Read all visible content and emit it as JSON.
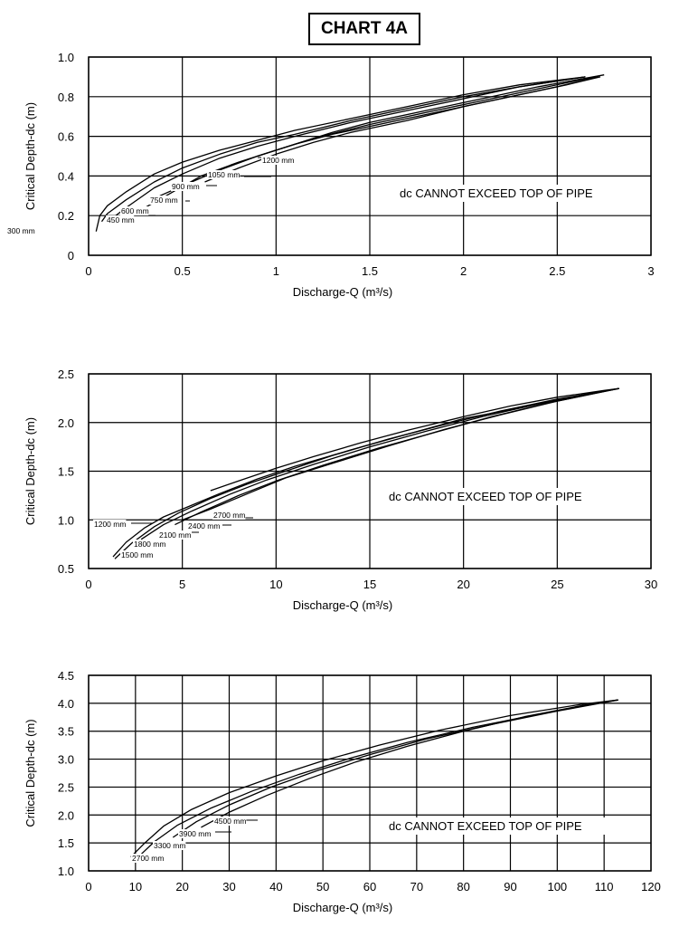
{
  "page_title": "CHART 4A",
  "chart_data": [
    {
      "type": "line",
      "xlabel": "Discharge-Q (m³/s)",
      "ylabel": "Critical Depth-dc (m)",
      "xlim": [
        0,
        3
      ],
      "ylim": [
        0,
        1.0
      ],
      "xticks": [
        0,
        0.5,
        1,
        1.5,
        2,
        2.5,
        3
      ],
      "xtick_labels": [
        "0",
        "0.5",
        "1",
        "1.5",
        "2",
        "2.5",
        "3"
      ],
      "yticks": [
        0,
        0.2,
        0.4,
        0.6,
        0.8,
        1.0
      ],
      "ytick_labels": [
        "0",
        "0.2",
        "0.4",
        "0.6",
        "0.8",
        "1.0"
      ],
      "grid": true,
      "annotation": "dc CANNOT EXCEED TOP OF PIPE",
      "series": [
        {
          "name": "300 mm",
          "x": [
            0.04,
            0.06,
            0.1,
            0.2,
            0.35,
            0.5,
            0.7,
            0.9,
            1.1,
            1.4,
            1.7,
            2.0,
            2.3,
            2.65
          ],
          "y": [
            0.12,
            0.2,
            0.25,
            0.32,
            0.41,
            0.47,
            0.53,
            0.58,
            0.63,
            0.69,
            0.75,
            0.81,
            0.86,
            0.9
          ]
        },
        {
          "name": "450 mm",
          "x": [
            0.07,
            0.1,
            0.2,
            0.35,
            0.5,
            0.7,
            0.9,
            1.1,
            1.4,
            1.7,
            2.0,
            2.3,
            2.65
          ],
          "y": [
            0.17,
            0.21,
            0.28,
            0.37,
            0.44,
            0.51,
            0.57,
            0.61,
            0.68,
            0.74,
            0.8,
            0.85,
            0.9
          ]
        },
        {
          "name": "600 mm",
          "x": [
            0.13,
            0.2,
            0.35,
            0.5,
            0.7,
            0.9,
            1.1,
            1.4,
            1.7,
            2.0,
            2.3,
            2.65
          ],
          "y": [
            0.19,
            0.24,
            0.34,
            0.41,
            0.49,
            0.55,
            0.6,
            0.67,
            0.73,
            0.79,
            0.85,
            0.9
          ]
        },
        {
          "name": "750 mm",
          "x": [
            0.3,
            0.45,
            0.6,
            0.8,
            1.0,
            1.2,
            1.5,
            1.8,
            2.1,
            2.4,
            2.7
          ],
          "y": [
            0.24,
            0.32,
            0.4,
            0.47,
            0.53,
            0.59,
            0.66,
            0.72,
            0.78,
            0.84,
            0.9
          ]
        },
        {
          "name": "900 mm",
          "x": [
            0.38,
            0.5,
            0.7,
            0.9,
            1.1,
            1.3,
            1.6,
            1.9,
            2.2,
            2.5,
            2.72
          ],
          "y": [
            0.3,
            0.35,
            0.43,
            0.5,
            0.56,
            0.61,
            0.67,
            0.73,
            0.79,
            0.85,
            0.9
          ]
        },
        {
          "name": "1050 mm",
          "x": [
            0.62,
            0.8,
            1.0,
            1.2,
            1.4,
            1.7,
            2.0,
            2.3,
            2.55,
            2.73
          ],
          "y": [
            0.37,
            0.44,
            0.51,
            0.57,
            0.62,
            0.68,
            0.75,
            0.81,
            0.86,
            0.9
          ]
        },
        {
          "name": "1200 mm",
          "x": [
            0.9,
            1.1,
            1.3,
            1.5,
            1.8,
            2.1,
            2.4,
            2.75
          ],
          "y": [
            0.5,
            0.56,
            0.62,
            0.67,
            0.73,
            0.79,
            0.85,
            0.91
          ]
        }
      ]
    },
    {
      "type": "line",
      "xlabel": "Discharge-Q (m³/s)",
      "ylabel": "Critical Depth-dc (m)",
      "xlim": [
        0,
        30
      ],
      "ylim": [
        0.5,
        2.5
      ],
      "xticks": [
        0,
        5,
        10,
        15,
        20,
        25,
        30
      ],
      "xtick_labels": [
        "0",
        "5",
        "10",
        "15",
        "20",
        "25",
        "30"
      ],
      "yticks": [
        0.5,
        1.0,
        1.5,
        2.0,
        2.5
      ],
      "ytick_labels": [
        "0.5",
        "1.0",
        "1.5",
        "2.0",
        "2.5"
      ],
      "grid": true,
      "annotation": "dc CANNOT EXCEED TOP OF PIPE",
      "series": [
        {
          "name": "1200 mm",
          "x": [
            1.3,
            2.0,
            3.0,
            4.0,
            5.5,
            7.0,
            9.0,
            11.0,
            14.0,
            17.0,
            20.0,
            23.0,
            26.0,
            28.3
          ],
          "y": [
            0.62,
            0.77,
            0.92,
            1.03,
            1.15,
            1.27,
            1.42,
            1.55,
            1.72,
            1.88,
            2.04,
            2.15,
            2.27,
            2.35
          ]
        },
        {
          "name": "1500 mm",
          "x": [
            1.4,
            2.3,
            3.5,
            4.8,
            6.5,
            8.5,
            10.5,
            13.0,
            16.0,
            19.0,
            22.0,
            25.0,
            28.3
          ],
          "y": [
            0.6,
            0.76,
            0.93,
            1.07,
            1.22,
            1.37,
            1.5,
            1.66,
            1.83,
            1.98,
            2.12,
            2.24,
            2.35
          ]
        },
        {
          "name": "1800 mm",
          "x": [
            2.8,
            4.0,
            5.5,
            7.5,
            9.5,
            12.0,
            15.0,
            18.0,
            21.0,
            24.0,
            26.5,
            28.3
          ],
          "y": [
            0.8,
            0.95,
            1.09,
            1.26,
            1.41,
            1.57,
            1.75,
            1.91,
            2.06,
            2.19,
            2.29,
            2.35
          ]
        },
        {
          "name": "2100 mm",
          "x": [
            4.6,
            6.0,
            8.0,
            10.0,
            12.5,
            15.5,
            18.5,
            21.5,
            24.5,
            27.0,
            28.3
          ],
          "y": [
            0.95,
            1.08,
            1.25,
            1.4,
            1.56,
            1.74,
            1.9,
            2.06,
            2.2,
            2.3,
            2.35
          ]
        },
        {
          "name": "2400 mm",
          "x": [
            5.0,
            6.5,
            8.5,
            10.5,
            13.0,
            16.0,
            19.0,
            22.0,
            25.0,
            27.3,
            28.3
          ],
          "y": [
            1.0,
            1.11,
            1.27,
            1.43,
            1.58,
            1.76,
            1.93,
            2.08,
            2.22,
            2.31,
            2.35
          ]
        },
        {
          "name": "2700 mm",
          "x": [
            6.5,
            8.0,
            10.0,
            12.0,
            14.5,
            17.0,
            20.0,
            22.5,
            25.0,
            27.5,
            28.3
          ],
          "y": [
            1.3,
            1.4,
            1.53,
            1.65,
            1.79,
            1.92,
            2.06,
            2.17,
            2.26,
            2.33,
            2.35
          ]
        }
      ]
    },
    {
      "type": "line",
      "xlabel": "Discharge-Q (m³/s)",
      "ylabel": "Critical Depth-dc (m)",
      "xlim": [
        0,
        120
      ],
      "ylim": [
        1.0,
        4.5
      ],
      "xticks": [
        0,
        10,
        20,
        30,
        40,
        50,
        60,
        70,
        80,
        90,
        100,
        110,
        120
      ],
      "xtick_labels": [
        "0",
        "10",
        "20",
        "30",
        "40",
        "50",
        "60",
        "70",
        "80",
        "90",
        "100",
        "110",
        "120"
      ],
      "yticks": [
        1.0,
        1.5,
        2.0,
        2.5,
        3.0,
        3.5,
        4.0,
        4.5
      ],
      "ytick_labels": [
        "1.0",
        "1.5",
        "2.0",
        "2.5",
        "3.0",
        "3.5",
        "4.0",
        "4.5"
      ],
      "grid": true,
      "annotation": "dc CANNOT EXCEED TOP OF PIPE",
      "series": [
        {
          "name": "2700 mm",
          "x": [
            9,
            12,
            16,
            22,
            30,
            40,
            50,
            62,
            75,
            90,
            105,
            113
          ],
          "y": [
            1.25,
            1.5,
            1.8,
            2.1,
            2.4,
            2.7,
            2.97,
            3.25,
            3.52,
            3.78,
            3.98,
            4.06
          ]
        },
        {
          "name": "3300 mm",
          "x": [
            11,
            14,
            19,
            26,
            35,
            45,
            56,
            68,
            82,
            97,
            110,
            113
          ],
          "y": [
            1.28,
            1.52,
            1.82,
            2.12,
            2.43,
            2.73,
            3.02,
            3.3,
            3.57,
            3.82,
            4.02,
            4.06
          ]
        },
        {
          "name": "3900 mm",
          "x": [
            18,
            23,
            30,
            39,
            49,
            60,
            72,
            86,
            100,
            113
          ],
          "y": [
            1.6,
            1.88,
            2.18,
            2.5,
            2.8,
            3.08,
            3.36,
            3.62,
            3.86,
            4.06
          ]
        },
        {
          "name": "4500 mm",
          "x": [
            24,
            30,
            38,
            47,
            57,
            68,
            80,
            93,
            106,
            113
          ],
          "y": [
            1.78,
            2.05,
            2.35,
            2.65,
            2.95,
            3.23,
            3.5,
            3.76,
            3.97,
            4.06
          ]
        }
      ]
    }
  ]
}
